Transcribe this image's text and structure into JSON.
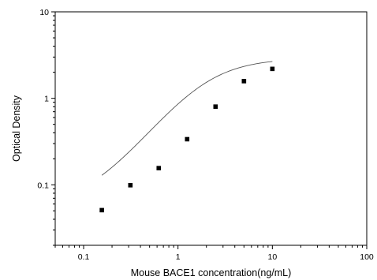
{
  "chart_data": {
    "type": "scatter",
    "xlabel": "Mouse BACE1 concentration(ng/mL)",
    "ylabel": "Optical Density",
    "xscale": "log",
    "yscale": "log",
    "xlim": [
      0.05,
      100
    ],
    "ylim": [
      0.02,
      10
    ],
    "x_ticks": [
      0.1,
      1,
      10,
      100
    ],
    "x_tick_labels": [
      "0.1",
      "1",
      "10",
      "100"
    ],
    "y_ticks": [
      0.1,
      1,
      10
    ],
    "y_tick_labels": [
      "0.1",
      "1",
      "10"
    ],
    "grid": false,
    "legend": "none",
    "series": [
      {
        "marker": "square",
        "color": "#000000",
        "x": [
          0.156,
          0.313,
          0.625,
          1.25,
          2.5,
          5,
          10
        ],
        "y": [
          0.051,
          0.099,
          0.156,
          0.337,
          0.802,
          1.58,
          2.19
        ]
      }
    ],
    "fit_curve": {
      "model": "four-parameter logistic",
      "color": "#555555",
      "bottom": 0.055,
      "top": 2.9,
      "ec50": 1.9,
      "hill": 1.45,
      "x_range": [
        0.156,
        10
      ]
    }
  }
}
